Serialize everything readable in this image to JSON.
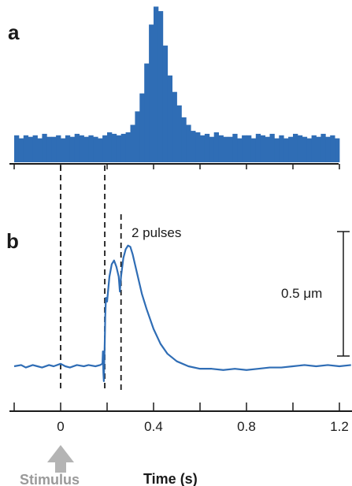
{
  "chart_data": [
    {
      "panel": "a",
      "type": "bar",
      "color": "#2f6db5",
      "xlim": [
        -0.2,
        1.2
      ],
      "bin_width": 0.02,
      "x_start": -0.2,
      "values": [
        18,
        16,
        18,
        17,
        18,
        16,
        19,
        17,
        17,
        18,
        16,
        18,
        17,
        19,
        18,
        17,
        18,
        17,
        16,
        18,
        20,
        19,
        18,
        19,
        20,
        25,
        34,
        46,
        66,
        92,
        104,
        101,
        78,
        58,
        47,
        38,
        30,
        25,
        21,
        20,
        18,
        19,
        17,
        20,
        18,
        17,
        17,
        19,
        16,
        18,
        18,
        16,
        19,
        18,
        17,
        19,
        16,
        18,
        16,
        17,
        19,
        18,
        17,
        16,
        18,
        17,
        19,
        17,
        18,
        16
      ]
    },
    {
      "panel": "b",
      "type": "line",
      "color": "#2f6db5",
      "xlim": [
        -0.2,
        1.25
      ],
      "x_ticks": [
        "0",
        "0.4",
        "0.8",
        "1.2"
      ],
      "xlabel": "Time (s)",
      "annotation": "2 pulses",
      "scale_label": "0.5 μm",
      "x": [
        -0.2,
        -0.17,
        -0.15,
        -0.12,
        -0.1,
        -0.08,
        -0.05,
        -0.03,
        0,
        0.02,
        0.04,
        0.07,
        0.1,
        0.12,
        0.15,
        0.17,
        0.18,
        0.182,
        0.184,
        0.186,
        0.188,
        0.19,
        0.192,
        0.195,
        0.2,
        0.205,
        0.21,
        0.22,
        0.23,
        0.24,
        0.25,
        0.255,
        0.26,
        0.27,
        0.28,
        0.29,
        0.3,
        0.31,
        0.32,
        0.33,
        0.34,
        0.35,
        0.37,
        0.4,
        0.43,
        0.46,
        0.5,
        0.55,
        0.6,
        0.65,
        0.7,
        0.75,
        0.8,
        0.85,
        0.9,
        0.95,
        1.0,
        1.05,
        1.1,
        1.15,
        1.2,
        1.25
      ],
      "y": [
        0,
        0.01,
        -0.01,
        0.01,
        0,
        -0.01,
        0.01,
        0,
        0.02,
        0,
        -0.01,
        0.01,
        0,
        0.01,
        0,
        0.01,
        0.02,
        0.12,
        -0.05,
        -0.12,
        0.04,
        0.2,
        0.4,
        0.55,
        0.52,
        0.62,
        0.72,
        0.82,
        0.85,
        0.8,
        0.72,
        0.6,
        0.72,
        0.87,
        0.94,
        0.97,
        0.96,
        0.9,
        0.82,
        0.74,
        0.66,
        0.58,
        0.46,
        0.3,
        0.18,
        0.1,
        0.04,
        0,
        -0.02,
        -0.02,
        -0.03,
        -0.02,
        -0.03,
        -0.02,
        -0.01,
        -0.01,
        0,
        0.01,
        0,
        0.01,
        0,
        0.01
      ],
      "dashed_lines": [
        0,
        0.19,
        0.26
      ]
    }
  ]
}
